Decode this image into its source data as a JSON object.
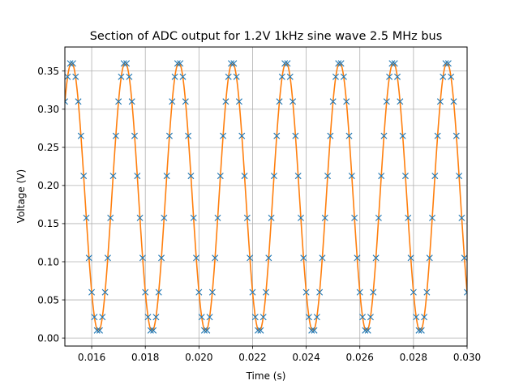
{
  "chart_data": {
    "type": "line",
    "title": "Section of ADC output for 1.2V 1kHz sine wave 2.5 MHz bus",
    "xlabel": "Time (s)",
    "ylabel": "Voltage (V)",
    "xlim": [
      0.015,
      0.03
    ],
    "ylim": [
      -0.0105,
      0.3815
    ],
    "x_ticks": [
      0.016,
      0.018,
      0.02,
      0.022,
      0.024,
      0.026,
      0.028,
      0.03
    ],
    "x_tick_labels": [
      "0.016",
      "0.018",
      "0.020",
      "0.022",
      "0.024",
      "0.026",
      "0.028",
      "0.030"
    ],
    "y_ticks": [
      0.0,
      0.05,
      0.1,
      0.15,
      0.2,
      0.25,
      0.3,
      0.35
    ],
    "y_tick_labels": [
      "0.00",
      "0.05",
      "0.10",
      "0.15",
      "0.20",
      "0.25",
      "0.30",
      "0.35"
    ],
    "grid": true,
    "series": [
      {
        "kind": "scatter",
        "marker": "x",
        "color": "#1f77b4",
        "x_start": 0.015,
        "x_step": 0.0001,
        "count": 151,
        "signal": {
          "offset": 0.185,
          "amplitude": 0.176,
          "period": 0.002,
          "peak_time": 0.01525
        },
        "quantization_step": 0.0025
      },
      {
        "kind": "line",
        "color": "#ff7f0e",
        "signal": {
          "offset": 0.185,
          "amplitude": 0.176,
          "period": 0.002,
          "peak_time": 0.01525
        }
      }
    ]
  }
}
